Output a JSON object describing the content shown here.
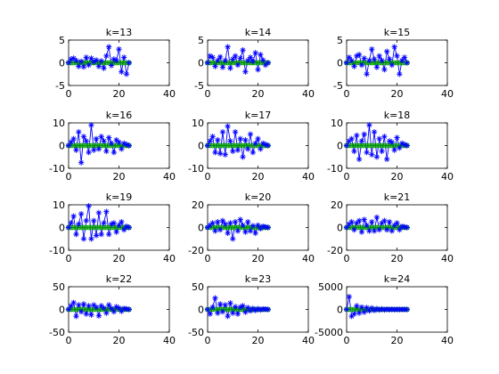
{
  "figure": {
    "background": "#ffffff",
    "series_colors": {
      "stem": "#0000ff",
      "reference": "#008000",
      "reference_marker": "#00a000"
    }
  },
  "chart_data": [
    {
      "type": "scatter",
      "title": "k=13",
      "xlim": [
        0,
        40
      ],
      "ylim": [
        -5,
        5
      ],
      "xticks": [
        "0",
        "20",
        "40"
      ],
      "yticks": [
        "-5",
        "0",
        "5"
      ],
      "grid": false,
      "series": [
        {
          "marker": "star",
          "values": [
            0,
            0.8,
            1,
            0.5,
            -0.8,
            0.3,
            -0.9,
            1.2,
            -0.5,
            1,
            0.2,
            0.6,
            -0.8,
            0.4,
            -1.2,
            1.5,
            3.5,
            -0.6,
            0.8,
            0.5,
            3,
            -2,
            1.2,
            -2.5,
            0
          ]
        },
        {
          "marker": "circle",
          "values": [
            0,
            0,
            0,
            0,
            0,
            0,
            0,
            0,
            0,
            0,
            0,
            0,
            0,
            0,
            0,
            0,
            0,
            0,
            0,
            0,
            0,
            0,
            0,
            0,
            0
          ]
        }
      ]
    },
    {
      "type": "scatter",
      "title": "k=14",
      "xlim": [
        0,
        40
      ],
      "ylim": [
        -5,
        5
      ],
      "xticks": [
        "0",
        "20",
        "40"
      ],
      "yticks": [
        "-5",
        "0",
        "5"
      ],
      "grid": false,
      "series": [
        {
          "marker": "star",
          "values": [
            0,
            1.5,
            1.2,
            -0.8,
            0.5,
            1.3,
            -1,
            0.5,
            3.5,
            -1.2,
            0.8,
            1.5,
            -0.5,
            1,
            2.8,
            -2,
            0.5,
            1.2,
            0.3,
            2.2,
            -1.5,
            1.8,
            0.6,
            -0.5,
            0
          ]
        },
        {
          "marker": "circle",
          "values": [
            0,
            0,
            0,
            0,
            0,
            0,
            0,
            0,
            0,
            0,
            0,
            0,
            0,
            0,
            0,
            0,
            0,
            0,
            0,
            0,
            0,
            0,
            0,
            0,
            0
          ]
        }
      ]
    },
    {
      "type": "scatter",
      "title": "k=15",
      "xlim": [
        0,
        40
      ],
      "ylim": [
        -5,
        5
      ],
      "xticks": [
        "0",
        "20",
        "40"
      ],
      "yticks": [
        "-5",
        "0",
        "5"
      ],
      "grid": false,
      "series": [
        {
          "marker": "star",
          "values": [
            0,
            1.2,
            0.5,
            -0.8,
            1.5,
            1.8,
            -0.5,
            1,
            -2.5,
            0.5,
            3,
            0.8,
            -1,
            1.5,
            0.5,
            -1.5,
            2.5,
            0.8,
            -0.5,
            3.5,
            1.5,
            -2.5,
            0.5,
            1.2,
            0
          ]
        },
        {
          "marker": "circle",
          "values": [
            0,
            0,
            0,
            0,
            0,
            0,
            0,
            0,
            0,
            0,
            0,
            0,
            0,
            0,
            0,
            0,
            0,
            0,
            0,
            0,
            0,
            0,
            0,
            0,
            0
          ]
        }
      ]
    },
    {
      "type": "scatter",
      "title": "k=16",
      "xlim": [
        0,
        40
      ],
      "ylim": [
        -10,
        10
      ],
      "xticks": [
        "0",
        "20",
        "40"
      ],
      "yticks": [
        "-10",
        "0",
        "10"
      ],
      "grid": false,
      "series": [
        {
          "marker": "star",
          "values": [
            0,
            1.5,
            3,
            -2,
            6,
            -7.5,
            4,
            2,
            -3,
            9,
            -2,
            3,
            -1.5,
            4,
            2,
            -2.5,
            3.5,
            1,
            -3,
            2.5,
            1.5,
            -1.5,
            1,
            0.5,
            0
          ]
        },
        {
          "marker": "circle",
          "values": [
            0,
            0,
            0,
            0,
            0,
            0,
            0,
            0,
            0,
            0,
            0,
            0,
            0,
            0,
            0,
            0,
            0,
            0,
            0,
            0,
            0,
            0,
            0,
            0,
            0
          ]
        }
      ]
    },
    {
      "type": "scatter",
      "title": "k=17",
      "xlim": [
        0,
        40
      ],
      "ylim": [
        -10,
        10
      ],
      "xticks": [
        "0",
        "20",
        "40"
      ],
      "yticks": [
        "-10",
        "0",
        "10"
      ],
      "grid": false,
      "series": [
        {
          "marker": "star",
          "values": [
            0,
            2,
            4,
            -3,
            2.5,
            -3.5,
            6,
            -4,
            8.5,
            2,
            -2.5,
            6,
            -2,
            3,
            -5,
            2.5,
            -1.5,
            5,
            -3,
            1,
            3,
            -1.5,
            1,
            0.5,
            0
          ]
        },
        {
          "marker": "circle",
          "values": [
            0,
            0,
            0,
            0,
            0,
            0,
            0,
            0,
            0,
            0,
            0,
            0,
            0,
            0,
            0,
            0,
            0,
            0,
            0,
            0,
            0,
            0,
            0,
            0,
            0
          ]
        }
      ]
    },
    {
      "type": "scatter",
      "title": "k=18",
      "xlim": [
        0,
        40
      ],
      "ylim": [
        -10,
        10
      ],
      "xticks": [
        "0",
        "20",
        "40"
      ],
      "yticks": [
        "-10",
        "0",
        "10"
      ],
      "grid": false,
      "series": [
        {
          "marker": "star",
          "values": [
            0,
            2,
            3,
            -2.5,
            4.5,
            -6,
            2,
            5,
            -3,
            9,
            -4,
            6,
            -5,
            3,
            -2.5,
            4,
            -6,
            2,
            1.5,
            -2,
            3.5,
            -1,
            1,
            0.5,
            0
          ]
        },
        {
          "marker": "circle",
          "values": [
            0,
            0,
            0,
            0,
            0,
            0,
            0,
            0,
            0,
            0,
            0,
            0,
            0,
            0,
            0,
            0,
            0,
            0,
            0,
            0,
            0,
            0,
            0,
            0,
            0
          ]
        }
      ]
    },
    {
      "type": "scatter",
      "title": "k=19",
      "xlim": [
        0,
        40
      ],
      "ylim": [
        -10,
        10
      ],
      "xticks": [
        "0",
        "20",
        "40"
      ],
      "yticks": [
        "-10",
        "0",
        "10"
      ],
      "grid": false,
      "series": [
        {
          "marker": "star",
          "values": [
            0,
            2,
            5,
            -3,
            1.5,
            6,
            -5,
            3,
            9.5,
            -5,
            3,
            -3.5,
            6.5,
            -3,
            2,
            7,
            -3,
            1.5,
            2,
            -2,
            1,
            2.5,
            -1,
            0.5,
            0
          ]
        },
        {
          "marker": "circle",
          "values": [
            0,
            0,
            0,
            0,
            0,
            0,
            0,
            0,
            0,
            0,
            0,
            0,
            0,
            0,
            0,
            0,
            0,
            0,
            0,
            0,
            0,
            0,
            0,
            0,
            0
          ]
        }
      ]
    },
    {
      "type": "scatter",
      "title": "k=20",
      "xlim": [
        0,
        40
      ],
      "ylim": [
        -20,
        20
      ],
      "xticks": [
        "0",
        "20",
        "40"
      ],
      "yticks": [
        "-20",
        "0",
        "20"
      ],
      "grid": false,
      "series": [
        {
          "marker": "star",
          "values": [
            0,
            2,
            4,
            -3,
            5,
            -2,
            6,
            3,
            -5,
            4,
            -10,
            5,
            -3,
            7,
            2,
            -4,
            5,
            -3,
            1.5,
            -5,
            2,
            -1,
            1,
            0.5,
            0
          ]
        },
        {
          "marker": "circle",
          "values": [
            0,
            0,
            0,
            0,
            0,
            0,
            0,
            0,
            0,
            0,
            0,
            0,
            0,
            0,
            0,
            0,
            0,
            0,
            0,
            0,
            0,
            0,
            0,
            0,
            0
          ]
        }
      ]
    },
    {
      "type": "scatter",
      "title": "k=21",
      "xlim": [
        0,
        40
      ],
      "ylim": [
        -20,
        20
      ],
      "xticks": [
        "0",
        "20",
        "40"
      ],
      "yticks": [
        "-20",
        "0",
        "20"
      ],
      "grid": false,
      "series": [
        {
          "marker": "star",
          "values": [
            0,
            3,
            5,
            -2,
            4,
            6,
            -4,
            7,
            2,
            -3,
            5,
            -3,
            9,
            -2,
            4,
            6,
            -2,
            5,
            -3,
            2,
            4,
            -2,
            1,
            0.5,
            0
          ]
        },
        {
          "marker": "circle",
          "values": [
            0,
            0,
            0,
            0,
            0,
            0,
            0,
            0,
            0,
            0,
            0,
            0,
            0,
            0,
            0,
            0,
            0,
            0,
            0,
            0,
            0,
            0,
            0,
            0,
            0
          ]
        }
      ]
    },
    {
      "type": "scatter",
      "title": "k=22",
      "xlim": [
        0,
        40
      ],
      "ylim": [
        -50,
        50
      ],
      "xticks": [
        "0",
        "20",
        "40"
      ],
      "yticks": [
        "-50",
        "0",
        "50"
      ],
      "grid": false,
      "series": [
        {
          "marker": "star",
          "values": [
            0,
            8,
            15,
            -15,
            10,
            -5,
            12,
            -10,
            8,
            -12,
            10,
            5,
            -14,
            8,
            3,
            -8,
            10,
            2,
            -5,
            6,
            3,
            -4,
            2,
            1,
            0
          ]
        },
        {
          "marker": "circle",
          "values": [
            0,
            0,
            0,
            0,
            0,
            0,
            0,
            0,
            0,
            0,
            0,
            0,
            0,
            0,
            0,
            0,
            0,
            0,
            0,
            0,
            0,
            0,
            0,
            0,
            0
          ]
        }
      ]
    },
    {
      "type": "scatter",
      "title": "k=23",
      "xlim": [
        0,
        40
      ],
      "ylim": [
        -50,
        50
      ],
      "xticks": [
        "0",
        "20",
        "40"
      ],
      "yticks": [
        "-50",
        "0",
        "50"
      ],
      "grid": false,
      "series": [
        {
          "marker": "star",
          "values": [
            0,
            -10,
            5,
            25,
            -8,
            12,
            -5,
            10,
            -15,
            14,
            -8,
            6,
            -10,
            5,
            8,
            -6,
            4,
            -3,
            2,
            -2,
            1.5,
            -1,
            1,
            0.5,
            0
          ]
        },
        {
          "marker": "circle",
          "values": [
            0,
            0,
            0,
            0,
            0,
            0,
            0,
            0,
            0,
            0,
            0,
            0,
            0,
            0,
            0,
            0,
            0,
            0,
            0,
            0,
            0,
            0,
            0,
            0,
            0
          ]
        }
      ]
    },
    {
      "type": "scatter",
      "title": "k=24",
      "xlim": [
        0,
        40
      ],
      "ylim": [
        -5000,
        5000
      ],
      "xticks": [
        "0",
        "20",
        "40"
      ],
      "yticks": [
        "-5000",
        "0",
        "5000"
      ],
      "grid": false,
      "series": [
        {
          "marker": "star",
          "values": [
            0,
            2800,
            -1500,
            -1000,
            800,
            -800,
            500,
            -600,
            400,
            -300,
            300,
            -200,
            150,
            -100,
            100,
            -80,
            60,
            -40,
            30,
            -20,
            10,
            -10,
            5,
            0,
            0
          ]
        },
        {
          "marker": "circle",
          "values": [
            0,
            0,
            0,
            0,
            0,
            0,
            0,
            0,
            0,
            0,
            0,
            0,
            0,
            0,
            0,
            0,
            0,
            0,
            0,
            0,
            0,
            0,
            0,
            0,
            0
          ]
        }
      ]
    }
  ]
}
